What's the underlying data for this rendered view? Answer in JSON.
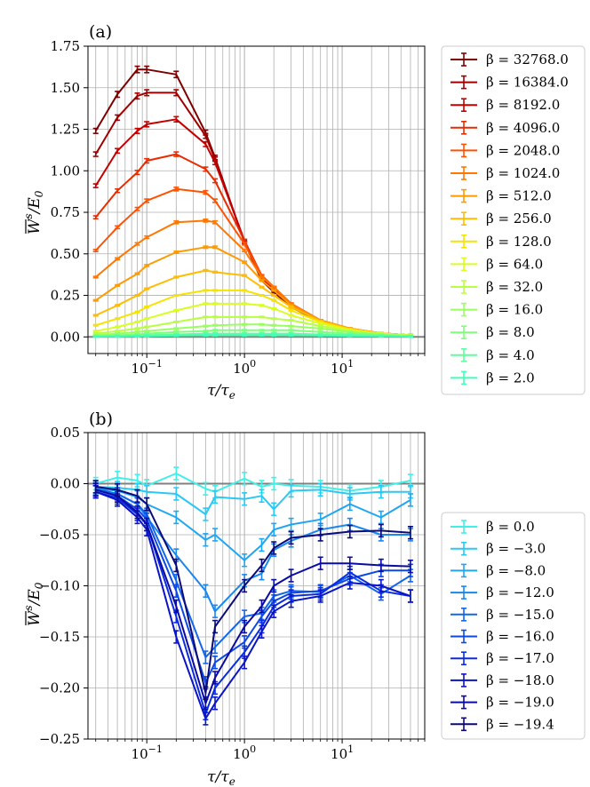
{
  "chart_data": [
    {
      "type": "line",
      "panel_label": "(a)",
      "xscale": "log",
      "xlim": [
        0.025,
        70
      ],
      "ylim": [
        -0.1,
        1.75
      ],
      "xlabel_main": "τ/τ",
      "xlabel_sub": "e",
      "ylabel_main": "W",
      "ylabel_sup": "s",
      "ylabel_div": "/E",
      "ylabel_sub": "0",
      "xticks": [
        {
          "value": 0.1,
          "base": "10",
          "exp": "−1"
        },
        {
          "value": 1,
          "base": "10",
          "exp": "0"
        },
        {
          "value": 10,
          "base": "10",
          "exp": "1"
        }
      ],
      "yticks": [
        {
          "value": 0.0,
          "label": "0.00"
        },
        {
          "value": 0.25,
          "label": "0.25"
        },
        {
          "value": 0.5,
          "label": "0.50"
        },
        {
          "value": 0.75,
          "label": "0.75"
        },
        {
          "value": 1.0,
          "label": "1.00"
        },
        {
          "value": 1.25,
          "label": "1.25"
        },
        {
          "value": 1.5,
          "label": "1.50"
        },
        {
          "value": 1.75,
          "label": "1.75"
        }
      ],
      "x": [
        0.03,
        0.05,
        0.08,
        0.1,
        0.2,
        0.4,
        0.5,
        1,
        1.5,
        2,
        3,
        6,
        12,
        25,
        50
      ],
      "series": [
        {
          "name": "32768.0",
          "label": "β = 32768.0",
          "color": "#7f0000",
          "values": [
            1.24,
            1.46,
            1.61,
            1.61,
            1.58,
            1.23,
            1.08,
            0.57,
            0.34,
            0.27,
            0.18,
            0.09,
            0.045,
            0.02,
            0.01
          ]
        },
        {
          "name": "16384.0",
          "label": "β = 16384.0",
          "color": "#a10000",
          "values": [
            1.1,
            1.32,
            1.45,
            1.47,
            1.47,
            1.21,
            1.07,
            0.57,
            0.35,
            0.28,
            0.19,
            0.09,
            0.045,
            0.02,
            0.01
          ]
        },
        {
          "name": "8192.0",
          "label": "β = 8192.0",
          "color": "#c40000",
          "values": [
            0.91,
            1.12,
            1.24,
            1.28,
            1.31,
            1.16,
            1.05,
            0.58,
            0.36,
            0.29,
            0.19,
            0.095,
            0.048,
            0.022,
            0.01
          ]
        },
        {
          "name": "4096.0",
          "label": "β = 4096.0",
          "color": "#e82c00",
          "values": [
            0.72,
            0.88,
            0.99,
            1.06,
            1.1,
            1.01,
            0.94,
            0.58,
            0.37,
            0.3,
            0.2,
            0.1,
            0.05,
            0.022,
            0.01
          ]
        },
        {
          "name": "2048.0",
          "label": "β = 2048.0",
          "color": "#ff5200",
          "values": [
            0.52,
            0.66,
            0.77,
            0.82,
            0.89,
            0.87,
            0.82,
            0.56,
            0.37,
            0.3,
            0.2,
            0.1,
            0.05,
            0.022,
            0.01
          ]
        },
        {
          "name": "1024.0",
          "label": "β = 1024.0",
          "color": "#ff7700",
          "values": [
            0.36,
            0.47,
            0.56,
            0.6,
            0.69,
            0.7,
            0.69,
            0.52,
            0.36,
            0.3,
            0.2,
            0.1,
            0.05,
            0.022,
            0.01
          ]
        },
        {
          "name": "512.0",
          "label": "β = 512.0",
          "color": "#ff9a00",
          "values": [
            0.22,
            0.31,
            0.38,
            0.43,
            0.51,
            0.54,
            0.54,
            0.45,
            0.34,
            0.28,
            0.19,
            0.1,
            0.05,
            0.022,
            0.01
          ]
        },
        {
          "name": "256.0",
          "label": "β = 256.0",
          "color": "#ffbc00",
          "values": [
            0.13,
            0.19,
            0.25,
            0.29,
            0.36,
            0.4,
            0.39,
            0.37,
            0.3,
            0.25,
            0.18,
            0.095,
            0.048,
            0.022,
            0.01
          ]
        },
        {
          "name": "128.0",
          "label": "β = 128.0",
          "color": "#f6e300",
          "values": [
            0.07,
            0.11,
            0.15,
            0.18,
            0.25,
            0.28,
            0.28,
            0.28,
            0.25,
            0.22,
            0.16,
            0.09,
            0.045,
            0.02,
            0.01
          ]
        },
        {
          "name": "64.0",
          "label": "β = 64.0",
          "color": "#d7ff1f",
          "values": [
            0.035,
            0.06,
            0.09,
            0.11,
            0.16,
            0.2,
            0.2,
            0.2,
            0.19,
            0.17,
            0.13,
            0.08,
            0.04,
            0.02,
            0.01
          ]
        },
        {
          "name": "32.0",
          "label": "β = 32.0",
          "color": "#b7ff40",
          "values": [
            0.02,
            0.035,
            0.05,
            0.06,
            0.09,
            0.12,
            0.12,
            0.12,
            0.12,
            0.11,
            0.1,
            0.065,
            0.035,
            0.017,
            0.008
          ]
        },
        {
          "name": "16.0",
          "label": "β = 16.0",
          "color": "#97ff60",
          "values": [
            0.01,
            0.02,
            0.03,
            0.035,
            0.05,
            0.065,
            0.07,
            0.075,
            0.075,
            0.07,
            0.065,
            0.05,
            0.03,
            0.015,
            0.007
          ]
        },
        {
          "name": "8.0",
          "label": "β = 8.0",
          "color": "#7dff7a",
          "values": [
            0.005,
            0.01,
            0.015,
            0.02,
            0.03,
            0.035,
            0.04,
            0.04,
            0.04,
            0.04,
            0.04,
            0.03,
            0.02,
            0.01,
            0.005
          ]
        },
        {
          "name": "4.0",
          "label": "β = 4.0",
          "color": "#5cff9b",
          "values": [
            0.003,
            0.006,
            0.008,
            0.01,
            0.015,
            0.02,
            0.02,
            0.02,
            0.02,
            0.02,
            0.02,
            0.015,
            0.012,
            0.007,
            0.004
          ]
        },
        {
          "name": "2.0",
          "label": "β = 2.0",
          "color": "#40ffb7",
          "values": [
            0.002,
            0.003,
            0.004,
            0.005,
            0.008,
            0.01,
            0.01,
            0.01,
            0.01,
            0.01,
            0.01,
            0.008,
            0.006,
            0.004,
            0.002
          ]
        }
      ]
    },
    {
      "type": "line",
      "panel_label": "(b)",
      "xscale": "log",
      "xlim": [
        0.025,
        70
      ],
      "ylim": [
        -0.25,
        0.05
      ],
      "xlabel_main": "τ/τ",
      "xlabel_sub": "e",
      "ylabel_main": "W",
      "ylabel_sup": "s",
      "ylabel_div": "/E",
      "ylabel_sub": "0",
      "xticks": [
        {
          "value": 0.1,
          "base": "10",
          "exp": "−1"
        },
        {
          "value": 1,
          "base": "10",
          "exp": "0"
        },
        {
          "value": 10,
          "base": "10",
          "exp": "1"
        }
      ],
      "yticks": [
        {
          "value": -0.25,
          "label": "−0.25"
        },
        {
          "value": -0.2,
          "label": "−0.20"
        },
        {
          "value": -0.15,
          "label": "−0.15"
        },
        {
          "value": -0.1,
          "label": "−0.10"
        },
        {
          "value": -0.05,
          "label": "−0.05"
        },
        {
          "value": 0.0,
          "label": "0.00"
        },
        {
          "value": 0.05,
          "label": "0.05"
        }
      ],
      "x": [
        0.03,
        0.05,
        0.08,
        0.1,
        0.2,
        0.4,
        0.5,
        1,
        1.5,
        2,
        3,
        6,
        12,
        25,
        50
      ],
      "series": [
        {
          "name": "0.0",
          "label": "β = 0.0",
          "color": "#40f0e8",
          "values": [
            0.0,
            0.006,
            0.003,
            -0.002,
            0.01,
            -0.005,
            -0.008,
            0.005,
            -0.003,
            0.0,
            -0.002,
            -0.003,
            -0.007,
            -0.003,
            0.003
          ]
        },
        {
          "name": "-3.0",
          "label": "β = −3.0",
          "color": "#29c8f5",
          "values": [
            -0.003,
            -0.004,
            -0.006,
            -0.008,
            -0.01,
            -0.03,
            -0.013,
            -0.015,
            -0.012,
            -0.025,
            -0.007,
            -0.006,
            -0.01,
            -0.008,
            -0.008
          ]
        },
        {
          "name": "-8.0",
          "label": "β = −8.0",
          "color": "#1fa6f2",
          "values": [
            -0.005,
            -0.007,
            -0.013,
            -0.02,
            -0.033,
            -0.055,
            -0.05,
            -0.075,
            -0.06,
            -0.045,
            -0.04,
            -0.035,
            -0.02,
            -0.033,
            -0.016
          ]
        },
        {
          "name": "-12.0",
          "label": "β = −12.0",
          "color": "#1887f0",
          "values": [
            -0.006,
            -0.01,
            -0.02,
            -0.033,
            -0.07,
            -0.105,
            -0.125,
            -0.095,
            -0.088,
            -0.065,
            -0.056,
            -0.045,
            -0.04,
            -0.05,
            -0.05
          ]
        },
        {
          "name": "-15.0",
          "label": "β = −15.0",
          "color": "#1266eb",
          "values": [
            -0.005,
            -0.01,
            -0.02,
            -0.03,
            -0.095,
            -0.17,
            -0.16,
            -0.13,
            -0.127,
            -0.11,
            -0.105,
            -0.106,
            -0.09,
            -0.108,
            -0.09
          ]
        },
        {
          "name": "-16.0",
          "label": "β = −16.0",
          "color": "#0c48e6",
          "values": [
            -0.006,
            -0.012,
            -0.025,
            -0.035,
            -0.105,
            -0.195,
            -0.175,
            -0.155,
            -0.13,
            -0.115,
            -0.107,
            -0.105,
            -0.093,
            -0.085,
            -0.085
          ]
        },
        {
          "name": "-17.0",
          "label": "β = −17.0",
          "color": "#0a2ce0",
          "values": [
            -0.008,
            -0.014,
            -0.03,
            -0.04,
            -0.13,
            -0.225,
            -0.2,
            -0.165,
            -0.14,
            -0.12,
            -0.11,
            -0.108,
            -0.087,
            -0.105,
            -0.11
          ]
        },
        {
          "name": "-18.0",
          "label": "β = −18.0",
          "color": "#0a14c8",
          "values": [
            -0.008,
            -0.016,
            -0.033,
            -0.045,
            -0.15,
            -0.23,
            -0.215,
            -0.175,
            -0.145,
            -0.125,
            -0.115,
            -0.11,
            -0.097,
            -0.1,
            -0.11
          ]
        },
        {
          "name": "-19.0",
          "label": "β = −19.0",
          "color": "#0a0aa4",
          "values": [
            -0.006,
            -0.012,
            -0.028,
            -0.04,
            -0.12,
            -0.215,
            -0.19,
            -0.14,
            -0.12,
            -0.1,
            -0.09,
            -0.078,
            -0.078,
            -0.08,
            -0.081
          ]
        },
        {
          "name": "-19.4",
          "label": "β = −19.4",
          "color": "#0a0a78",
          "values": [
            -0.003,
            -0.006,
            -0.012,
            -0.02,
            -0.08,
            -0.205,
            -0.14,
            -0.1,
            -0.08,
            -0.063,
            -0.053,
            -0.05,
            -0.047,
            -0.046,
            -0.048
          ]
        }
      ]
    }
  ]
}
